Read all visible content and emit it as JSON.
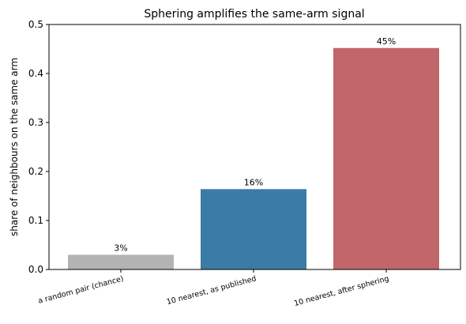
{
  "chart_data": {
    "type": "bar",
    "title": "Sphering amplifies the same-arm signal",
    "ylabel": "share of neighbours on the same arm",
    "categories": [
      "a random pair (chance)",
      "10 nearest, as published",
      "10 nearest, after sphering"
    ],
    "values": [
      0.03,
      0.164,
      0.452
    ],
    "value_labels": [
      "3%",
      "16%",
      "45%"
    ],
    "colors": [
      "#b3b3b3",
      "#3a7ca5",
      "#c1666b"
    ],
    "ylim": [
      0,
      0.5
    ],
    "yticks": [
      {
        "value": 0,
        "label": "0.0"
      },
      0.1,
      0.2,
      0.3,
      0.4,
      0.5
    ],
    "grid": false
  }
}
